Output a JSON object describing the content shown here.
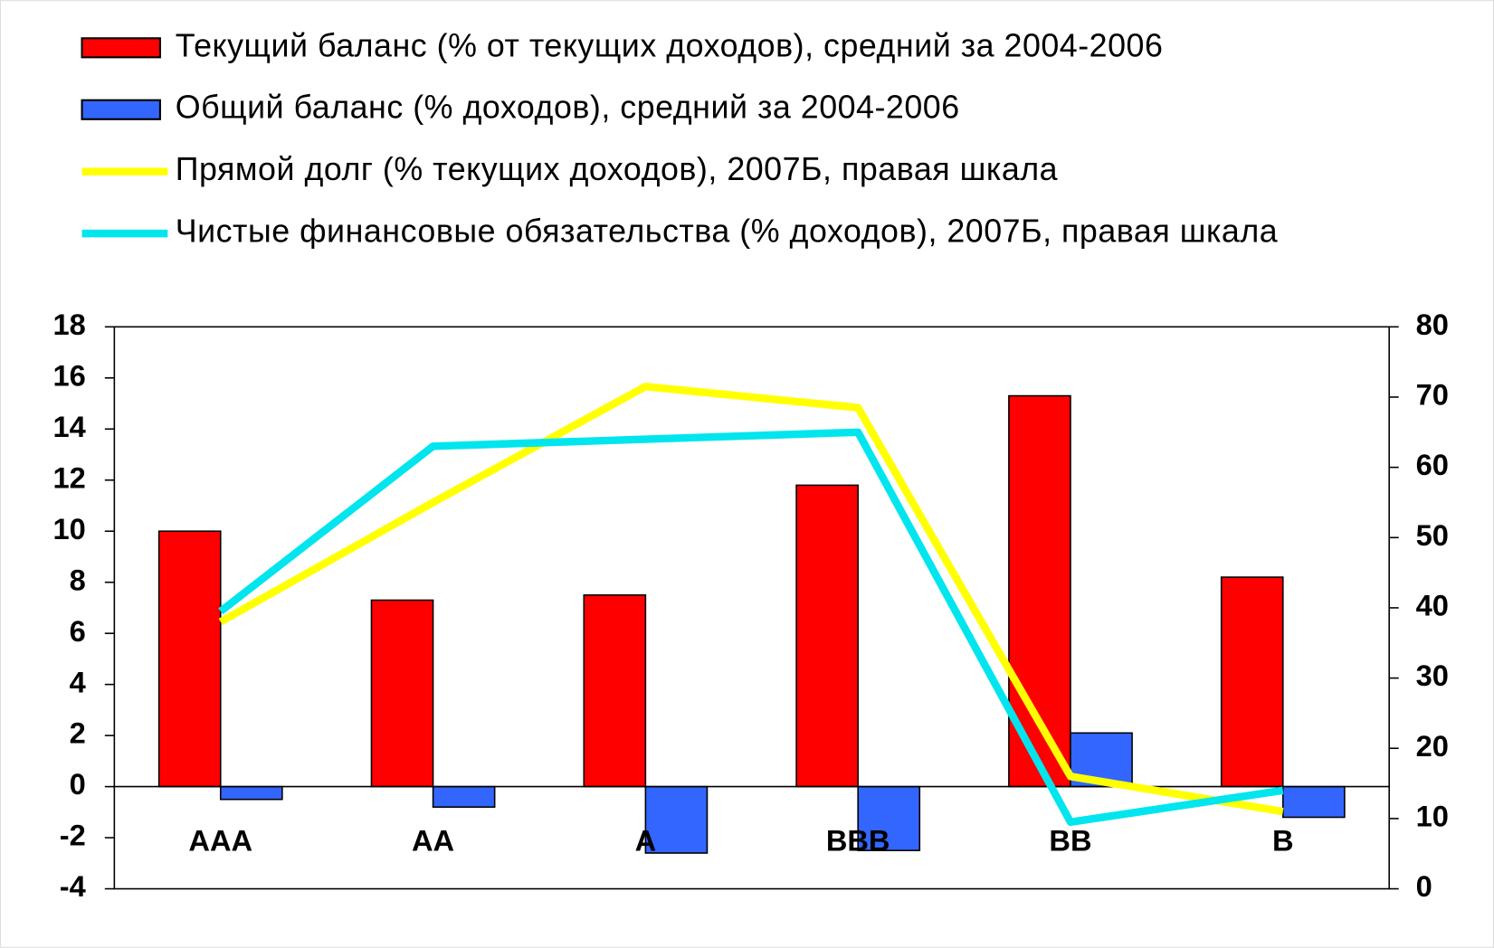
{
  "chart_data": {
    "type": "bar",
    "categories": [
      "AAA",
      "AA",
      "A",
      "BBB",
      "BB",
      "B"
    ],
    "series": [
      {
        "name": "Текущий баланс (% от текущих доходов), средний за 2004-2006",
        "type": "bar",
        "color": "#ff0000",
        "values": [
          10,
          7.3,
          7.5,
          11.8,
          15.3,
          8.2
        ]
      },
      {
        "name": "Общий баланс (% доходов), средний за 2004-2006",
        "type": "bar",
        "color": "#3366ff",
        "values": [
          -0.5,
          -0.8,
          -2.6,
          -2.5,
          2.1,
          -1.2
        ]
      },
      {
        "name": "Прямой долг (% текущих доходов), 2007Б, правая шкала",
        "type": "line",
        "axis": "y2",
        "color": "#ffff00",
        "values": [
          38,
          55,
          71.5,
          68.5,
          16,
          11
        ]
      },
      {
        "name": "Чистые финансовые обязательства (% доходов), 2007Б, правая шкала",
        "type": "line",
        "axis": "y2",
        "color": "#00e5ee",
        "values": [
          39.5,
          63,
          64,
          65,
          9.5,
          14
        ]
      }
    ],
    "ylim": [
      -4,
      18
    ],
    "yticks": [
      -4,
      -2,
      0,
      2,
      4,
      6,
      8,
      10,
      12,
      14,
      16,
      18
    ],
    "y2lim": [
      0,
      80
    ],
    "y2ticks": [
      0,
      10,
      20,
      30,
      40,
      50,
      60,
      70,
      80
    ],
    "legend": "top-left"
  }
}
